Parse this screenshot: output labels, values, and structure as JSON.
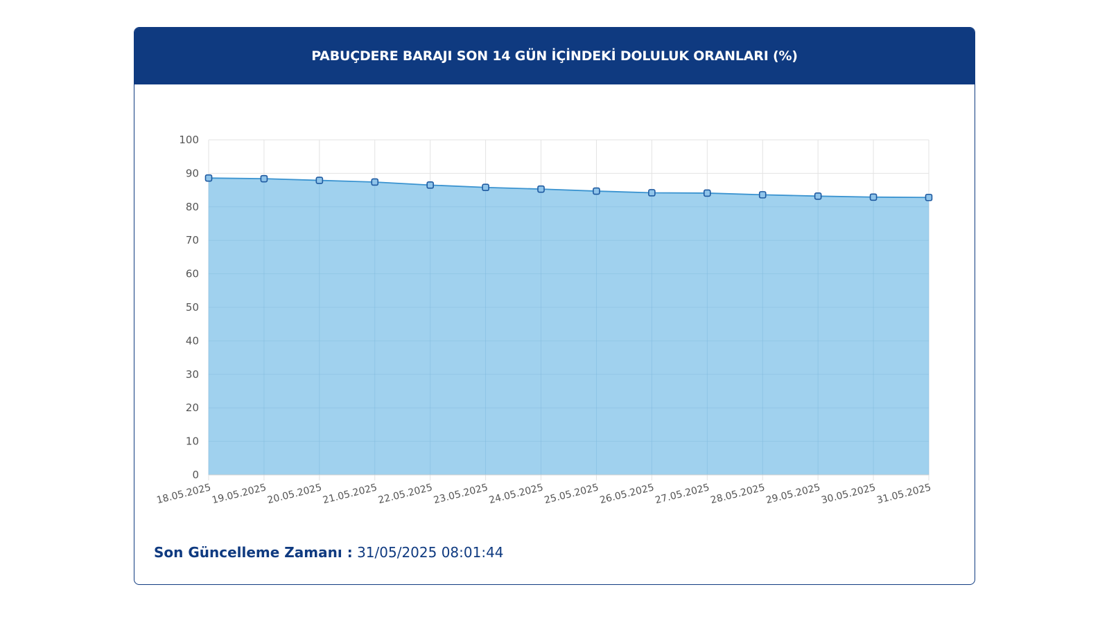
{
  "header": {
    "title": "PABUÇDERE BARAJI SON 14 GÜN İÇİNDEKİ DOLULUK ORANLARI (%)"
  },
  "footer": {
    "label": "Son Güncelleme Zamanı :",
    "value": "31/05/2025 08:01:44"
  },
  "colors": {
    "header_bg": "#0f3a80",
    "area_fill": "#9bcfed",
    "line": "#3a93d0",
    "marker_fill": "#8fc4ea",
    "marker_stroke": "#1f5aa0"
  },
  "chart_data": {
    "type": "area",
    "categories": [
      "18.05.2025",
      "19.05.2025",
      "20.05.2025",
      "21.05.2025",
      "22.05.2025",
      "23.05.2025",
      "24.05.2025",
      "25.05.2025",
      "26.05.2025",
      "27.05.2025",
      "28.05.2025",
      "29.05.2025",
      "30.05.2025",
      "31.05.2025"
    ],
    "series": [
      {
        "values": [
          88.6,
          88.4,
          87.9,
          87.4,
          86.5,
          85.8,
          85.3,
          84.7,
          84.2,
          84.1,
          83.6,
          83.2,
          82.9,
          82.8
        ]
      }
    ],
    "ylim": [
      0,
      100
    ],
    "yticks": [
      0,
      10,
      20,
      30,
      40,
      50,
      60,
      70,
      80,
      90,
      100
    ],
    "grid": true,
    "legend": "none"
  }
}
